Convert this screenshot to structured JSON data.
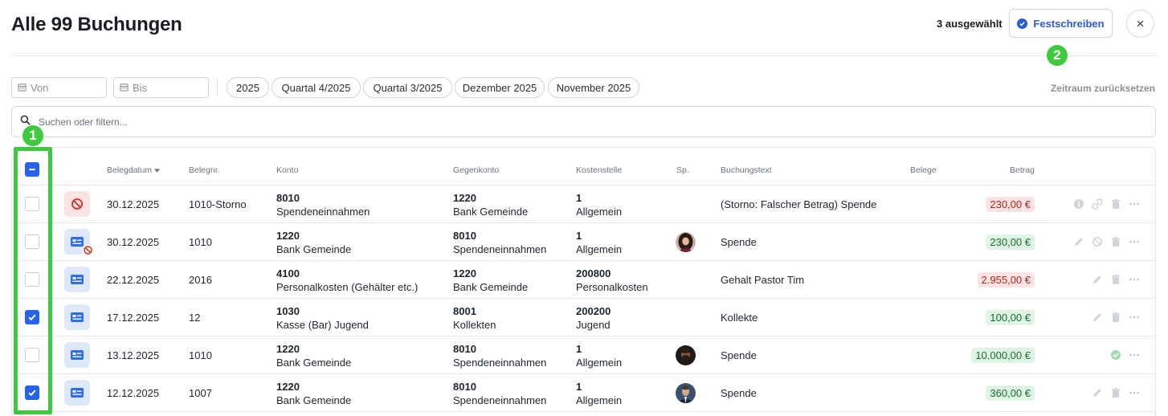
{
  "header": {
    "title": "Alle 99 Buchungen",
    "selected_count": "3 ausgewählt",
    "commit_label": "Festschreiben",
    "close_label": "×"
  },
  "markers": [
    "1",
    "2"
  ],
  "filters": {
    "from_placeholder": "Von",
    "to_placeholder": "Bis",
    "chips": [
      "2025",
      "Quartal 4/2025",
      "Quartal 3/2025",
      "Dezember 2025",
      "November 2025"
    ],
    "reset_label": "Zeitraum zurücksetzen"
  },
  "search": {
    "placeholder": "Suchen oder filtern..."
  },
  "table": {
    "columns": [
      "Belegdatum",
      "Belegnr.",
      "Konto",
      "Gegenkonto",
      "Kostenstelle",
      "Sp.",
      "Buchungstext",
      "Belege",
      "Betrag"
    ],
    "sort_column": "Belegdatum",
    "rows": [
      {
        "checked": false,
        "doc": "storno",
        "date": "30.12.2025",
        "nr": "1010-Storno",
        "konto_nr": "8010",
        "konto_name": "Spendeneinnahmen",
        "gegen_nr": "1220",
        "gegen_name": "Bank Gemeinde",
        "ks_nr": "1",
        "ks_name": "Allgemein",
        "sp": "",
        "text": "(Storno: Falscher Betrag) Spende",
        "amount": "230,00 €",
        "amount_type": "negative",
        "actions": [
          "info-icon",
          "link-icon",
          "trash-icon",
          "more-icon"
        ]
      },
      {
        "checked": false,
        "doc": "receipt-storno",
        "date": "30.12.2025",
        "nr": "1010",
        "konto_nr": "1220",
        "konto_name": "Bank Gemeinde",
        "gegen_nr": "8010",
        "gegen_name": "Spendeneinnahmen",
        "ks_nr": "1",
        "ks_name": "Allgemein",
        "sp": "avatar-woman",
        "text": "Spende",
        "amount": "230,00 €",
        "amount_type": "positive",
        "actions": [
          "pencil-icon",
          "storno-icon",
          "trash-icon",
          "more-icon"
        ]
      },
      {
        "checked": false,
        "doc": "receipt",
        "date": "22.12.2025",
        "nr": "2016",
        "konto_nr": "4100",
        "konto_name": "Personalkosten (Gehälter etc.)",
        "gegen_nr": "1220",
        "gegen_name": "Bank Gemeinde",
        "ks_nr": "200800",
        "ks_name": "Personalkosten",
        "sp": "",
        "text": "Gehalt Pastor Tim",
        "amount": "2.955,00 €",
        "amount_type": "negative",
        "actions": [
          "pencil-icon",
          "trash-icon",
          "more-icon"
        ]
      },
      {
        "checked": true,
        "doc": "receipt",
        "date": "17.12.2025",
        "nr": "12",
        "konto_nr": "1030",
        "konto_name": "Kasse (Bar) Jugend",
        "gegen_nr": "8001",
        "gegen_name": "Kollekten",
        "ks_nr": "200200",
        "ks_name": "Jugend",
        "sp": "",
        "text": "Kollekte",
        "amount": "100,00 €",
        "amount_type": "positive",
        "actions": [
          "pencil-icon",
          "trash-icon",
          "more-icon"
        ]
      },
      {
        "checked": false,
        "doc": "receipt",
        "date": "13.12.2025",
        "nr": "1010",
        "konto_nr": "1220",
        "konto_name": "Bank Gemeinde",
        "gegen_nr": "8010",
        "gegen_name": "Spendeneinnahmen",
        "ks_nr": "1",
        "ks_name": "Allgemein",
        "sp": "avatar-man-beard",
        "text": "Spende",
        "amount": "10.000,00 €",
        "amount_type": "positive",
        "actions": [
          "check-circle-icon",
          "more-icon"
        ]
      },
      {
        "checked": true,
        "doc": "receipt",
        "date": "12.12.2025",
        "nr": "1007",
        "konto_nr": "1220",
        "konto_name": "Bank Gemeinde",
        "gegen_nr": "8010",
        "gegen_name": "Spendeneinnahmen",
        "ks_nr": "1",
        "ks_name": "Allgemein",
        "sp": "avatar-man-suit",
        "text": "Spende",
        "amount": "360,00 €",
        "amount_type": "positive",
        "actions": [
          "pencil-icon",
          "trash-icon",
          "more-icon"
        ]
      }
    ]
  },
  "colors": {
    "accent": "#2563eb",
    "marker_green": "#3ec93e",
    "negative_bg": "#fde4e4",
    "positive_bg": "#def5e3"
  }
}
